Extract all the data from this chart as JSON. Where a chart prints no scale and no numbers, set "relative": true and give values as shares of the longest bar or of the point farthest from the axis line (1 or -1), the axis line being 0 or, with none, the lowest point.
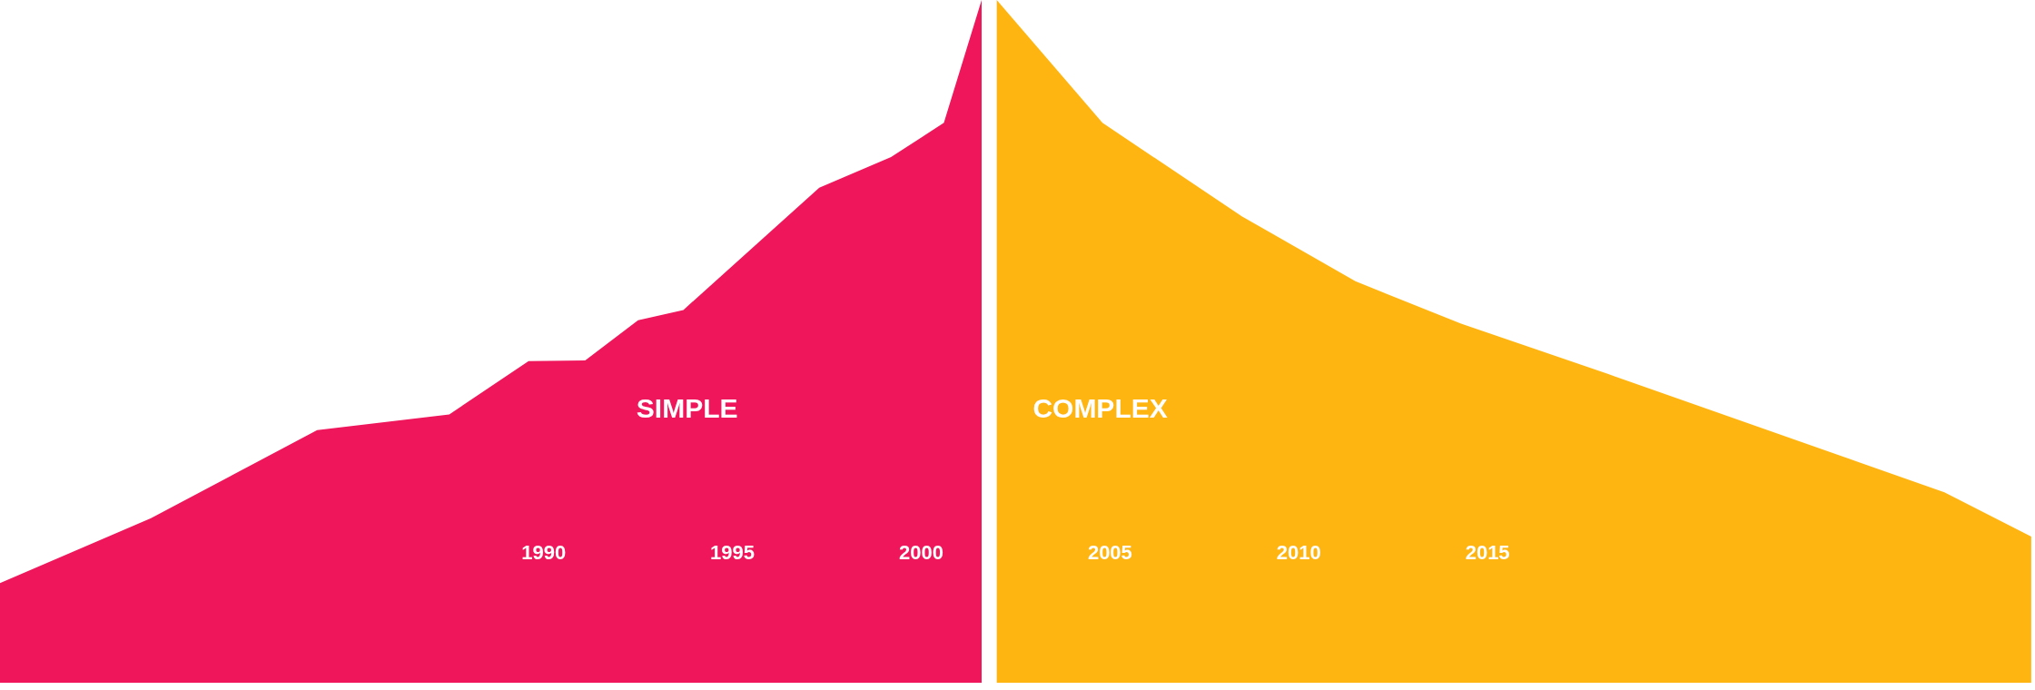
{
  "chart_data": {
    "type": "area",
    "relative": true,
    "xlim": [
      1975.6,
      2029.5
    ],
    "xticks": [
      1990,
      1995,
      2000,
      2005,
      2010,
      2015
    ],
    "grid": false,
    "series": [
      {
        "name": "SIMPLE",
        "color": "#ef165c",
        "x": [
          1975.6,
          1979.6,
          1984.0,
          1987.5,
          1989.6,
          1991.1,
          1992.5,
          1993.7,
          1997.3,
          1999.2,
          2000.6,
          2001.6
        ],
        "values": [
          0.146,
          0.241,
          0.37,
          0.393,
          0.471,
          0.472,
          0.531,
          0.546,
          0.725,
          0.77,
          0.82,
          1.0
        ]
      },
      {
        "name": "COMPLEX",
        "color": "#ffb511",
        "x": [
          2002.0,
          2004.8,
          2008.5,
          2011.5,
          2014.3,
          2018.2,
          2023.7,
          2027.1,
          2029.4
        ],
        "values": [
          1.0,
          0.82,
          0.683,
          0.588,
          0.526,
          0.452,
          0.345,
          0.279,
          0.214
        ]
      }
    ]
  }
}
